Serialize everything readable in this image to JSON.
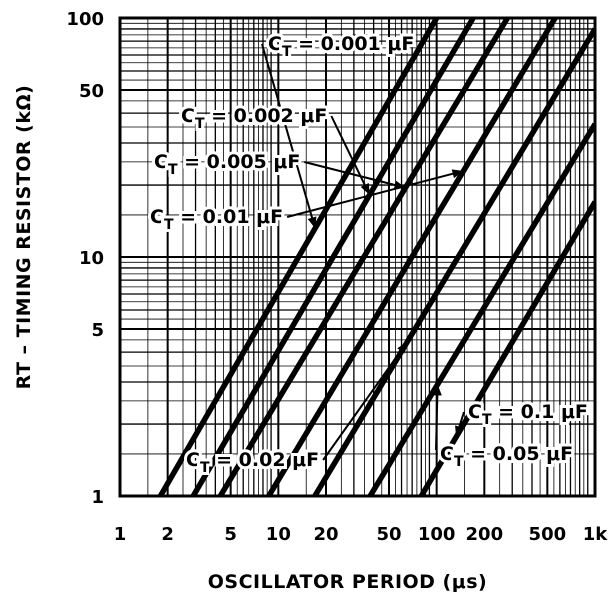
{
  "chart_data": {
    "type": "line",
    "title": "",
    "xlabel": "OSCILLATOR PERIOD (μs)",
    "ylabel": "RT – TIMING RESISTOR (kΩ)",
    "x_scale": "log",
    "y_scale": "log",
    "xlim": [
      1,
      1000
    ],
    "ylim": [
      1,
      100
    ],
    "grid": true,
    "x_ticks": [
      {
        "value": 1,
        "label": "1"
      },
      {
        "value": 2,
        "label": "2"
      },
      {
        "value": 5,
        "label": "5"
      },
      {
        "value": 10,
        "label": "10"
      },
      {
        "value": 20,
        "label": "20"
      },
      {
        "value": 50,
        "label": "50"
      },
      {
        "value": 100,
        "label": "100"
      },
      {
        "value": 200,
        "label": "200"
      },
      {
        "value": 500,
        "label": "500"
      },
      {
        "value": 1000,
        "label": "1k"
      }
    ],
    "y_ticks": [
      {
        "value": 1,
        "label": "1"
      },
      {
        "value": 5,
        "label": "5"
      },
      {
        "value": 10,
        "label": "10"
      },
      {
        "value": 50,
        "label": "50"
      },
      {
        "value": 100,
        "label": "100"
      }
    ],
    "series": [
      {
        "name": "CT = 0.001 μF",
        "points": [
          [
            1.8,
            1
          ],
          [
            100,
            100
          ]
        ]
      },
      {
        "name": "CT = 0.002 μF",
        "points": [
          [
            2.9,
            1
          ],
          [
            170,
            100
          ]
        ]
      },
      {
        "name": "CT = 0.005 μF",
        "points": [
          [
            4.3,
            1
          ],
          [
            280,
            100
          ]
        ]
      },
      {
        "name": "CT = 0.01 μF",
        "points": [
          [
            8.7,
            1
          ],
          [
            560,
            100
          ]
        ]
      },
      {
        "name": "CT = 0.02 μF",
        "points": [
          [
            17,
            1
          ],
          [
            1000,
            90
          ]
        ]
      },
      {
        "name": "CT = 0.05 μF",
        "points": [
          [
            38,
            1
          ],
          [
            1000,
            36
          ]
        ]
      },
      {
        "name": "CT = 0.1 μF",
        "points": [
          [
            80,
            1
          ],
          [
            1000,
            17
          ]
        ]
      }
    ],
    "annotations": [
      {
        "text": "CT = 0.001 μF",
        "target_series": 0
      },
      {
        "text": "CT = 0.002 μF",
        "target_series": 1
      },
      {
        "text": "CT = 0.005 μF",
        "target_series": 2
      },
      {
        "text": "CT = 0.01 μF",
        "target_series": 3
      },
      {
        "text": "CT = 0.02 μF",
        "target_series": 4
      },
      {
        "text": "CT = 0.05 μF",
        "target_series": 5
      },
      {
        "text": "CT = 0.1 μF",
        "target_series": 6
      }
    ]
  }
}
